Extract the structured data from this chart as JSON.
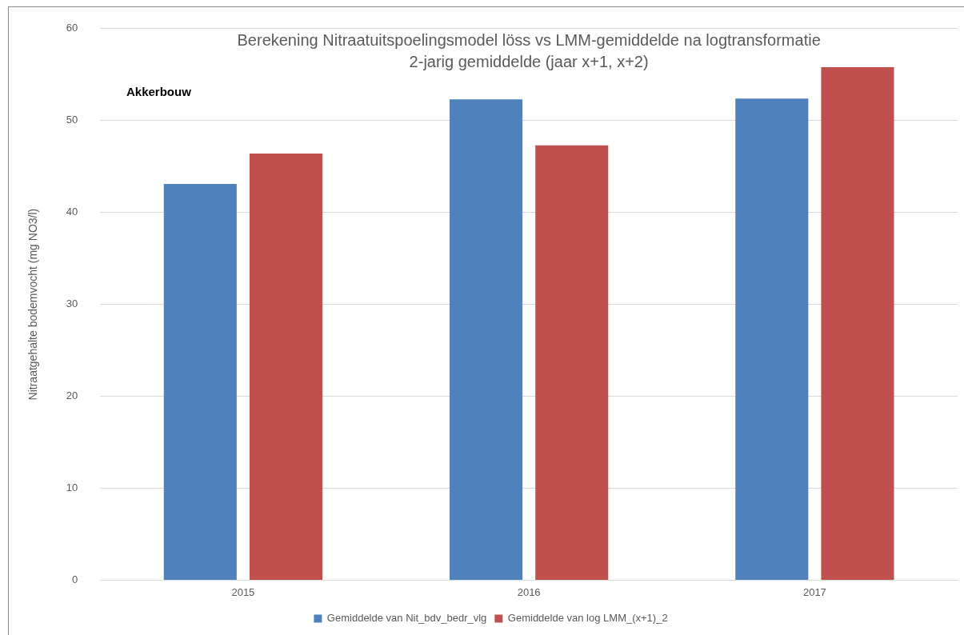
{
  "chart_data": {
    "type": "bar",
    "title": [
      "Berekening Nitraatuitspoelingsmodel löss vs LMM-gemiddelde na logtransformatie",
      "2-jarig gemiddelde (jaar x+1, x+2)"
    ],
    "ylabel": "Nitraatgehalte bodemvocht (mg NO3/l)",
    "annotations": [
      "Akkerbouw"
    ],
    "categories": [
      "2015",
      "2016",
      "2017"
    ],
    "series": [
      {
        "name": "Gemiddelde van Nit_bdv_bedr_vlg",
        "color": "#4f81bd",
        "values": [
          43.1,
          52.3,
          52.4
        ]
      },
      {
        "name": "Gemiddelde van log LMM_(x+1)_2",
        "color": "#c0504d",
        "values": [
          46.4,
          47.3,
          55.8
        ]
      }
    ],
    "ylim": [
      0,
      60
    ],
    "yticks": [
      0,
      10,
      20,
      30,
      40,
      50,
      60
    ],
    "grid": "y",
    "legend": "bottom"
  }
}
